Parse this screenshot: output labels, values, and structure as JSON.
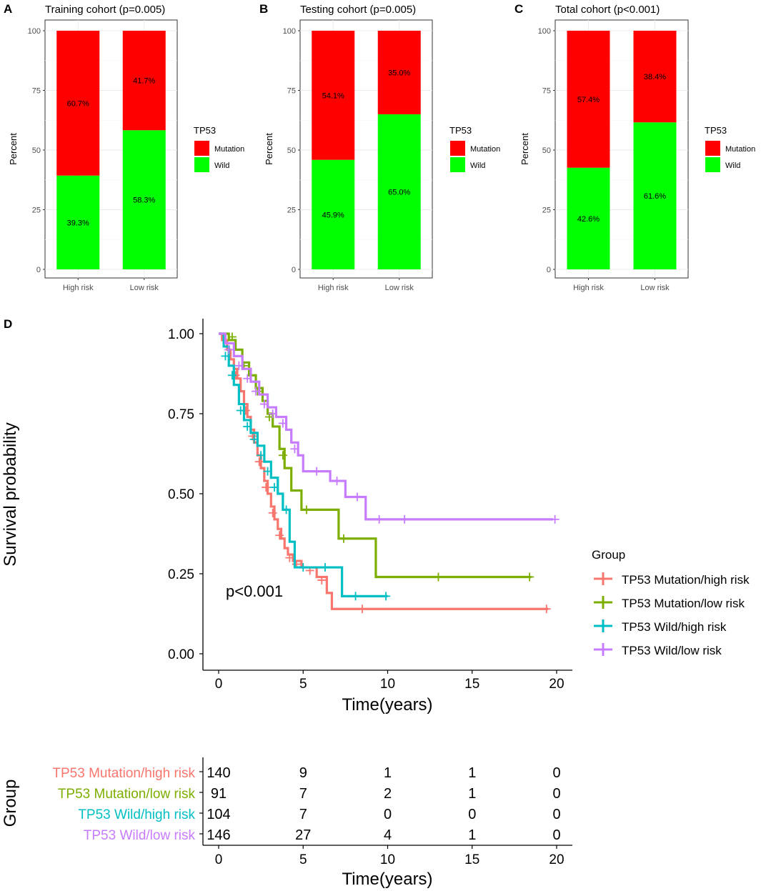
{
  "chart_data": [
    {
      "panel": "A",
      "type": "bar",
      "stacked": true,
      "title": "Training cohort (p=0.005)",
      "xlabel": "",
      "ylabel": "Percent",
      "ylim": [
        0,
        100
      ],
      "yticks": [
        0,
        25,
        50,
        75,
        100
      ],
      "categories": [
        "High risk",
        "Low risk"
      ],
      "legend_title": "TP53",
      "series": [
        {
          "name": "Wild",
          "color": "#00FF00",
          "values": [
            39.3,
            58.3
          ],
          "labels": [
            "39.3%",
            "58.3%"
          ]
        },
        {
          "name": "Mutation",
          "color": "#FF0000",
          "values": [
            60.7,
            41.7
          ],
          "labels": [
            "60.7%",
            "41.7%"
          ]
        }
      ]
    },
    {
      "panel": "B",
      "type": "bar",
      "stacked": true,
      "title": "Testing cohort (p=0.005)",
      "xlabel": "",
      "ylabel": "Percent",
      "ylim": [
        0,
        100
      ],
      "yticks": [
        0,
        25,
        50,
        75,
        100
      ],
      "categories": [
        "High risk",
        "Low risk"
      ],
      "legend_title": "TP53",
      "series": [
        {
          "name": "Wild",
          "color": "#00FF00",
          "values": [
            45.9,
            65.0
          ],
          "labels": [
            "45.9%",
            "65.0%"
          ]
        },
        {
          "name": "Mutation",
          "color": "#FF0000",
          "values": [
            54.1,
            35.0
          ],
          "labels": [
            "54.1%",
            "35.0%"
          ]
        }
      ]
    },
    {
      "panel": "C",
      "type": "bar",
      "stacked": true,
      "title": "Total cohort (p<0.001)",
      "xlabel": "",
      "ylabel": "Percent",
      "ylim": [
        0,
        100
      ],
      "yticks": [
        0,
        25,
        50,
        75,
        100
      ],
      "categories": [
        "High risk",
        "Low risk"
      ],
      "legend_title": "TP53",
      "series": [
        {
          "name": "Wild",
          "color": "#00FF00",
          "values": [
            42.6,
            61.6
          ],
          "labels": [
            "42.6%",
            "61.6%"
          ]
        },
        {
          "name": "Mutation",
          "color": "#FF0000",
          "values": [
            57.4,
            38.4
          ],
          "labels": [
            "57.4%",
            "38.4%"
          ]
        }
      ]
    },
    {
      "panel": "D",
      "type": "line",
      "subtype": "kaplan-meier",
      "title": "",
      "xlabel": "Time(years)",
      "ylabel": "Survival probability",
      "xlim": [
        0,
        20
      ],
      "ylim": [
        0,
        1
      ],
      "xticks": [
        0,
        5,
        10,
        15,
        20
      ],
      "yticks": [
        "0.00",
        "0.25",
        "0.50",
        "0.75",
        "1.00"
      ],
      "annotation": "p<0.001",
      "legend_title": "Group",
      "series": [
        {
          "name": "TP53 Mutation/high risk",
          "color": "#F8766D",
          "steps": [
            [
              0,
              1.0
            ],
            [
              0.2,
              0.98
            ],
            [
              0.5,
              0.95
            ],
            [
              0.7,
              0.92
            ],
            [
              0.9,
              0.89
            ],
            [
              1.1,
              0.86
            ],
            [
              1.3,
              0.82
            ],
            [
              1.5,
              0.78
            ],
            [
              1.7,
              0.74
            ],
            [
              1.9,
              0.7
            ],
            [
              2.1,
              0.66
            ],
            [
              2.3,
              0.62
            ],
            [
              2.5,
              0.58
            ],
            [
              2.7,
              0.54
            ],
            [
              2.9,
              0.5
            ],
            [
              3.1,
              0.46
            ],
            [
              3.3,
              0.42
            ],
            [
              3.5,
              0.39
            ],
            [
              3.7,
              0.36
            ],
            [
              3.9,
              0.33
            ],
            [
              4.1,
              0.31
            ],
            [
              4.4,
              0.29
            ],
            [
              4.9,
              0.27
            ],
            [
              5.8,
              0.24
            ],
            [
              6.4,
              0.19
            ],
            [
              6.7,
              0.14
            ],
            [
              19.5,
              0.14
            ]
          ],
          "censors": [
            [
              1.0,
              0.87
            ],
            [
              1.6,
              0.76
            ],
            [
              2.0,
              0.68
            ],
            [
              2.4,
              0.6
            ],
            [
              2.8,
              0.52
            ],
            [
              3.2,
              0.44
            ],
            [
              3.6,
              0.37
            ],
            [
              4.2,
              0.3
            ],
            [
              4.6,
              0.28
            ],
            [
              5.4,
              0.26
            ],
            [
              6.1,
              0.23
            ],
            [
              8.5,
              0.14
            ],
            [
              19.4,
              0.14
            ]
          ]
        },
        {
          "name": "TP53 Mutation/low risk",
          "color": "#7CAE00",
          "steps": [
            [
              0,
              1.0
            ],
            [
              0.6,
              0.98
            ],
            [
              1.0,
              0.95
            ],
            [
              1.4,
              0.91
            ],
            [
              1.8,
              0.87
            ],
            [
              2.2,
              0.83
            ],
            [
              2.6,
              0.79
            ],
            [
              2.9,
              0.75
            ],
            [
              3.2,
              0.71
            ],
            [
              3.6,
              0.64
            ],
            [
              3.9,
              0.58
            ],
            [
              4.3,
              0.51
            ],
            [
              4.9,
              0.45
            ],
            [
              7.1,
              0.36
            ],
            [
              9.3,
              0.24
            ],
            [
              18.5,
              0.24
            ]
          ],
          "censors": [
            [
              0.8,
              0.99
            ],
            [
              1.5,
              0.9
            ],
            [
              2.3,
              0.82
            ],
            [
              3.0,
              0.74
            ],
            [
              3.8,
              0.62
            ],
            [
              5.2,
              0.45
            ],
            [
              7.4,
              0.36
            ],
            [
              13.0,
              0.24
            ],
            [
              18.4,
              0.24
            ]
          ]
        },
        {
          "name": "TP53 Wild/high risk",
          "color": "#00BFC4",
          "steps": [
            [
              0,
              1.0
            ],
            [
              0.3,
              0.96
            ],
            [
              0.6,
              0.9
            ],
            [
              0.9,
              0.84
            ],
            [
              1.2,
              0.78
            ],
            [
              1.5,
              0.73
            ],
            [
              1.9,
              0.69
            ],
            [
              2.3,
              0.65
            ],
            [
              2.7,
              0.6
            ],
            [
              3.1,
              0.55
            ],
            [
              3.5,
              0.5
            ],
            [
              3.8,
              0.45
            ],
            [
              4.2,
              0.35
            ],
            [
              4.5,
              0.27
            ],
            [
              7.3,
              0.18
            ],
            [
              10.0,
              0.18
            ]
          ],
          "censors": [
            [
              0.4,
              0.93
            ],
            [
              0.8,
              0.87
            ],
            [
              1.3,
              0.76
            ],
            [
              1.7,
              0.71
            ],
            [
              2.1,
              0.67
            ],
            [
              2.5,
              0.62
            ],
            [
              2.9,
              0.57
            ],
            [
              3.3,
              0.52
            ],
            [
              4.0,
              0.45
            ],
            [
              5.0,
              0.27
            ],
            [
              6.3,
              0.27
            ],
            [
              8.1,
              0.18
            ],
            [
              9.9,
              0.18
            ]
          ]
        },
        {
          "name": "TP53 Wild/low risk",
          "color": "#C77CFF",
          "steps": [
            [
              0,
              1.0
            ],
            [
              0.4,
              0.97
            ],
            [
              0.9,
              0.93
            ],
            [
              1.4,
              0.89
            ],
            [
              1.9,
              0.85
            ],
            [
              2.4,
              0.81
            ],
            [
              2.9,
              0.77
            ],
            [
              3.4,
              0.74
            ],
            [
              4.0,
              0.7
            ],
            [
              4.3,
              0.66
            ],
            [
              4.7,
              0.62
            ],
            [
              5.0,
              0.57
            ],
            [
              6.6,
              0.54
            ],
            [
              7.5,
              0.49
            ],
            [
              8.7,
              0.42
            ],
            [
              19.8,
              0.42
            ]
          ],
          "censors": [
            [
              0.6,
              0.95
            ],
            [
              1.2,
              0.9
            ],
            [
              1.7,
              0.86
            ],
            [
              2.2,
              0.82
            ],
            [
              2.7,
              0.78
            ],
            [
              3.2,
              0.75
            ],
            [
              3.8,
              0.72
            ],
            [
              4.5,
              0.64
            ],
            [
              5.8,
              0.57
            ],
            [
              7.0,
              0.54
            ],
            [
              8.2,
              0.49
            ],
            [
              9.5,
              0.42
            ],
            [
              11.0,
              0.42
            ],
            [
              19.9,
              0.42
            ]
          ]
        }
      ]
    },
    {
      "panel": "D-risk-table",
      "type": "table",
      "title": "",
      "xlabel": "Time(years)",
      "ylabel": "Group",
      "xticks": [
        0,
        5,
        10,
        15,
        20
      ],
      "rows": [
        {
          "name": "TP53 Mutation/high risk",
          "color": "#F8766D",
          "counts": [
            140,
            9,
            1,
            1,
            0
          ]
        },
        {
          "name": "TP53 Mutation/low risk",
          "color": "#7CAE00",
          "counts": [
            91,
            7,
            2,
            1,
            0
          ]
        },
        {
          "name": "TP53 Wild/high risk",
          "color": "#00BFC4",
          "counts": [
            104,
            7,
            0,
            0,
            0
          ]
        },
        {
          "name": "TP53 Wild/low risk",
          "color": "#C77CFF",
          "counts": [
            146,
            27,
            4,
            1,
            0
          ]
        }
      ]
    }
  ],
  "panel_letters": [
    "A",
    "B",
    "C",
    "D"
  ]
}
